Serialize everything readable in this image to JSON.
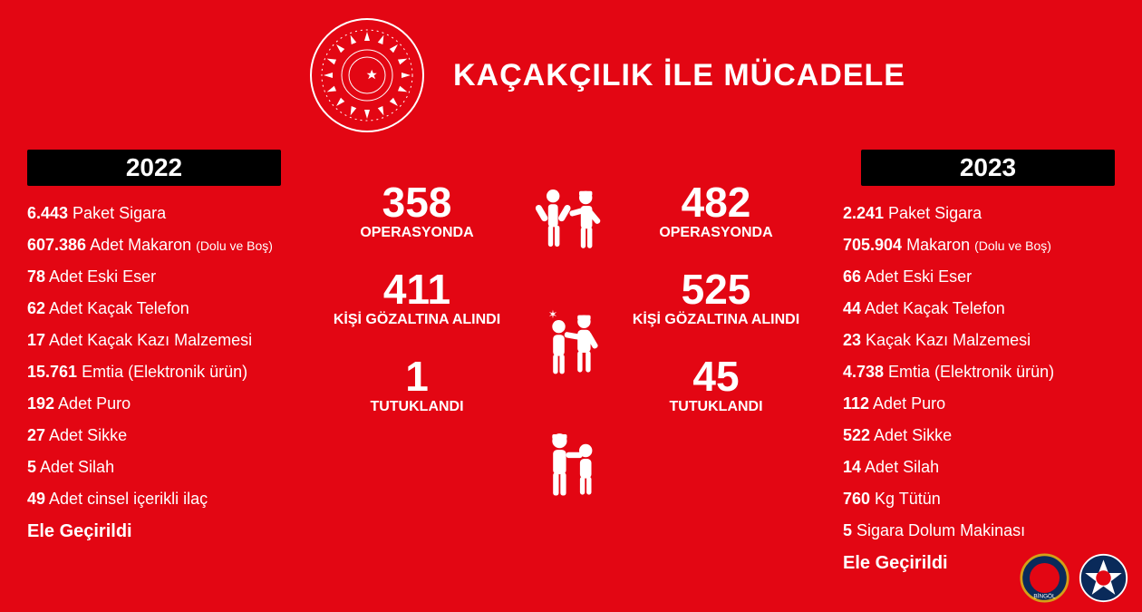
{
  "colors": {
    "background": "#e30613",
    "bar_bg": "#000000",
    "text": "#ffffff"
  },
  "title": "KAÇAKÇILIK İLE MÜCADELE",
  "year_left": "2022",
  "year_right": "2023",
  "list_left": {
    "items": [
      {
        "b": "6.443",
        "t": " Paket Sigara"
      },
      {
        "b": "607.386",
        "t": " Adet Makaron ",
        "s": "(Dolu ve Boş)"
      },
      {
        "b": "78",
        "t": " Adet Eski Eser"
      },
      {
        "b": "62",
        "t": " Adet Kaçak Telefon"
      },
      {
        "b": "17",
        "t": " Adet Kaçak Kazı Malzemesi"
      },
      {
        "b": "15.761",
        "t": " Emtia (Elektronik ürün)"
      },
      {
        "b": "192",
        "t": " Adet Puro"
      },
      {
        "b": "27",
        "t": " Adet Sikke"
      },
      {
        "b": "5",
        "t": " Adet Silah"
      },
      {
        "b": "49",
        "t": " Adet cinsel içerikli ilaç"
      }
    ],
    "footer": "Ele Geçirildi"
  },
  "list_right": {
    "items": [
      {
        "b": "2.241",
        "t": " Paket Sigara"
      },
      {
        "b": "705.904",
        "t": " Makaron ",
        "s": "(Dolu ve Boş)"
      },
      {
        "b": "66",
        "t": " Adet Eski Eser"
      },
      {
        "b": "44",
        "t": " Adet Kaçak Telefon"
      },
      {
        "b": "23",
        "t": " Kaçak Kazı Malzemesi"
      },
      {
        "b": "4.738",
        "t": " Emtia (Elektronik ürün)"
      },
      {
        "b": "112",
        "t": " Adet Puro"
      },
      {
        "b": "522",
        "t": " Adet Sikke"
      },
      {
        "b": "14",
        "t": " Adet Silah"
      },
      {
        "b": "760",
        "t": " Kg Tütün"
      },
      {
        "b": "5",
        "t": " Sigara Dolum Makinası"
      }
    ],
    "footer": "Ele Geçirildi"
  },
  "stats_left": [
    {
      "num": "358",
      "label": "OPERASYONDA"
    },
    {
      "num": "411",
      "label": "KİŞİ GÖZALTINA ALINDI"
    },
    {
      "num": "1",
      "label": "TUTUKLANDI"
    }
  ],
  "stats_right": [
    {
      "num": "482",
      "label": "OPERASYONDA"
    },
    {
      "num": "525",
      "label": "KİŞİ GÖZALTINA ALINDI"
    },
    {
      "num": "45",
      "label": "TUTUKLANDI"
    }
  ],
  "emblem_label": "TÜRKİYE CUMHURİYETİ BİNGÖL VALİLİĞİ",
  "badge1": "JANDARMA BİNGÖL",
  "badge2": "BİNGÖL EMNİYET MÜDÜRLÜĞÜ"
}
